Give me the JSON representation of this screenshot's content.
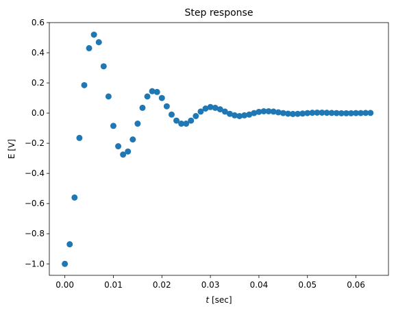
{
  "chart_data": {
    "type": "scatter",
    "title": "Step response",
    "xlabel_var": "t",
    "xlabel_unit": " [sec]",
    "ylabel": "E [V]",
    "xlim": [
      -0.0032,
      0.0667
    ],
    "ylim": [
      -1.076,
      0.6
    ],
    "xticks": [
      0.0,
      0.01,
      0.02,
      0.03,
      0.04,
      0.05,
      0.06
    ],
    "xtick_labels": [
      "0.00",
      "0.01",
      "0.02",
      "0.03",
      "0.04",
      "0.05",
      "0.06"
    ],
    "yticks": [
      -1.0,
      -0.8,
      -0.6,
      -0.4,
      -0.2,
      0.0,
      0.2,
      0.4,
      0.6
    ],
    "ytick_labels": [
      "−1.0",
      "−0.8",
      "−0.6",
      "−0.4",
      "−0.2",
      "0.0",
      "0.2",
      "0.4",
      "0.6"
    ],
    "grid": false,
    "marker_color": "#1f77b4",
    "points": [
      [
        0.0,
        -1.0
      ],
      [
        0.001,
        -0.87
      ],
      [
        0.002,
        -0.56
      ],
      [
        0.003,
        -0.165
      ],
      [
        0.004,
        0.185
      ],
      [
        0.005,
        0.43
      ],
      [
        0.006,
        0.52
      ],
      [
        0.007,
        0.47
      ],
      [
        0.008,
        0.31
      ],
      [
        0.009,
        0.11
      ],
      [
        0.01,
        -0.085
      ],
      [
        0.011,
        -0.22
      ],
      [
        0.012,
        -0.275
      ],
      [
        0.013,
        -0.255
      ],
      [
        0.014,
        -0.175
      ],
      [
        0.015,
        -0.07
      ],
      [
        0.016,
        0.035
      ],
      [
        0.017,
        0.11
      ],
      [
        0.018,
        0.145
      ],
      [
        0.019,
        0.14
      ],
      [
        0.02,
        0.1
      ],
      [
        0.021,
        0.045
      ],
      [
        0.022,
        -0.01
      ],
      [
        0.023,
        -0.05
      ],
      [
        0.024,
        -0.07
      ],
      [
        0.025,
        -0.07
      ],
      [
        0.026,
        -0.05
      ],
      [
        0.027,
        -0.02
      ],
      [
        0.028,
        0.01
      ],
      [
        0.029,
        0.03
      ],
      [
        0.03,
        0.04
      ],
      [
        0.031,
        0.035
      ],
      [
        0.032,
        0.025
      ],
      [
        0.033,
        0.01
      ],
      [
        0.034,
        -0.005
      ],
      [
        0.035,
        -0.015
      ],
      [
        0.036,
        -0.02
      ],
      [
        0.037,
        -0.015
      ],
      [
        0.038,
        -0.01
      ],
      [
        0.039,
        0.0
      ],
      [
        0.04,
        0.008
      ],
      [
        0.041,
        0.012
      ],
      [
        0.042,
        0.012
      ],
      [
        0.043,
        0.01
      ],
      [
        0.044,
        0.005
      ],
      [
        0.045,
        0.0
      ],
      [
        0.046,
        -0.004
      ],
      [
        0.047,
        -0.006
      ],
      [
        0.048,
        -0.005
      ],
      [
        0.049,
        -0.003
      ],
      [
        0.05,
        0.0
      ],
      [
        0.051,
        0.002
      ],
      [
        0.052,
        0.003
      ],
      [
        0.053,
        0.003
      ],
      [
        0.054,
        0.002
      ],
      [
        0.055,
        0.001
      ],
      [
        0.056,
        0.0
      ],
      [
        0.057,
        -0.001
      ],
      [
        0.058,
        -0.001
      ],
      [
        0.059,
        -0.001
      ],
      [
        0.06,
        0.0
      ],
      [
        0.061,
        0.0
      ],
      [
        0.062,
        0.001
      ],
      [
        0.063,
        0.001
      ]
    ]
  }
}
